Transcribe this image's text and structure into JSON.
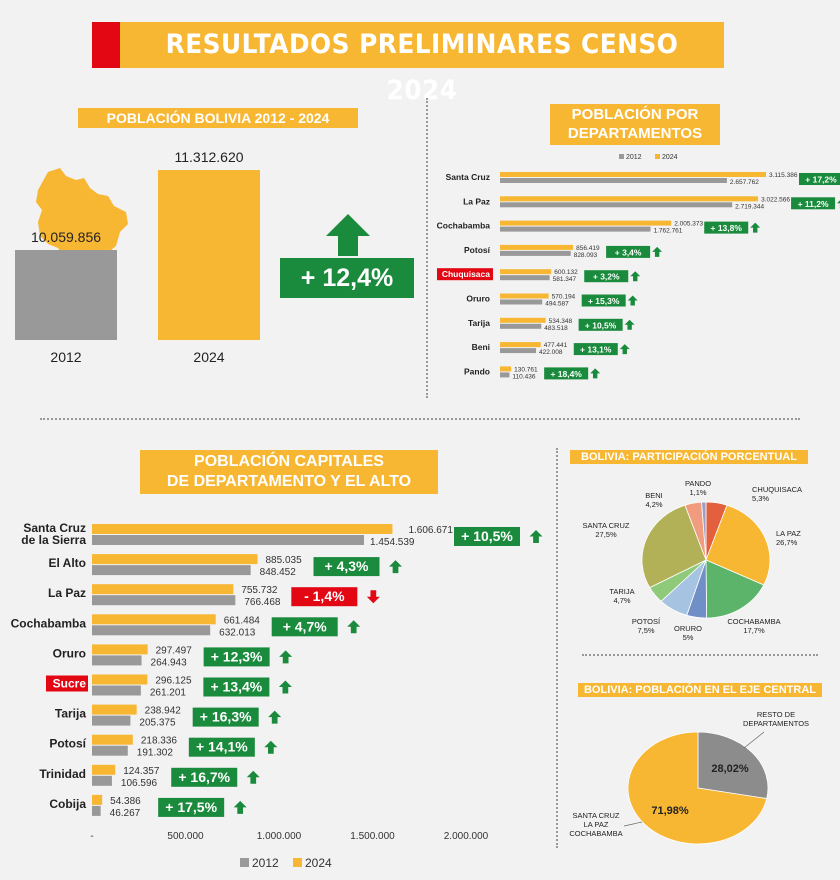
{
  "title": "RESULTADOS PRELIMINARES CENSO 2024",
  "colors": {
    "y2024": "#f7b733",
    "y2012": "#999999",
    "up": "#1a8a3c",
    "down": "#e30613",
    "highlight": "#e30613"
  },
  "icons": {
    "up": "arrow-up-icon",
    "down": "arrow-down-icon",
    "map": "bolivia-map-icon"
  },
  "chart_data": [
    {
      "type": "bar",
      "title": "POBLACIÓN BOLIVIA 2012 - 2024",
      "categories": [
        "2012",
        "2024"
      ],
      "values": [
        10059856,
        11312620
      ],
      "value_labels": [
        "10.059.856",
        "11.312.620"
      ],
      "change_label": "+ 12,4%"
    },
    {
      "type": "bar",
      "title": "POBLACIÓN POR DEPARTAMENTOS",
      "legend": [
        "2012",
        "2024"
      ],
      "categories": [
        "Santa Cruz",
        "La Paz",
        "Cochabamba",
        "Potosí",
        "Chuquisaca",
        "Oruro",
        "Tarija",
        "Beni",
        "Pando"
      ],
      "series": [
        {
          "name": "2024",
          "values": [
            3115386,
            3022566,
            2005373,
            856419,
            600132,
            570194,
            534348,
            477441,
            130761
          ],
          "labels": [
            "3.115.386",
            "3.022.566",
            "2.005.373",
            "856.419",
            "600.132",
            "570.194",
            "534.348",
            "477.441",
            "130.761"
          ]
        },
        {
          "name": "2012",
          "values": [
            2657762,
            2719344,
            1762761,
            828093,
            581347,
            494587,
            483518,
            422008,
            110436
          ],
          "labels": [
            "2.657.762",
            "2.719.344",
            "1.762.761",
            "828.093",
            "581.347",
            "494.587",
            "483.518",
            "422.008",
            "110.436"
          ]
        }
      ],
      "changes": [
        "+ 17,2%",
        "+ 11,2%",
        "+ 13,8%",
        "+ 3,4%",
        "+ 3,2%",
        "+ 15,3%",
        "+ 10,5%",
        "+ 13,1%",
        "+ 18,4%"
      ],
      "highlight": "Chuquisaca"
    },
    {
      "type": "bar",
      "title": "POBLACIÓN CAPITALES DE DEPARTAMENTO Y EL ALTO",
      "title_lines": [
        "POBLACIÓN CAPITALES",
        "DE DEPARTAMENTO Y EL ALTO"
      ],
      "legend": [
        "2012",
        "2024"
      ],
      "categories": [
        "Santa Cruz de la Sierra",
        "El Alto",
        "La Paz",
        "Cochabamba",
        "Oruro",
        "Sucre",
        "Tarija",
        "Potosí",
        "Trinidad",
        "Cobija"
      ],
      "category_lines": [
        [
          "Santa Cruz",
          "de la Sierra"
        ],
        [
          "El Alto"
        ],
        [
          "La Paz"
        ],
        [
          "Cochabamba"
        ],
        [
          "Oruro"
        ],
        [
          "Sucre"
        ],
        [
          "Tarija"
        ],
        [
          "Potosí"
        ],
        [
          "Trinidad"
        ],
        [
          "Cobija"
        ]
      ],
      "series": [
        {
          "name": "2024",
          "values": [
            1606671,
            885035,
            755732,
            661484,
            297497,
            296125,
            238942,
            218336,
            124357,
            54386
          ],
          "labels": [
            "1.606.671",
            "885.035",
            "755.732",
            "661.484",
            "297.497",
            "296.125",
            "238.942",
            "218.336",
            "124.357",
            "54.386"
          ]
        },
        {
          "name": "2012",
          "values": [
            1454539,
            848452,
            766468,
            632013,
            264943,
            261201,
            205375,
            191302,
            106596,
            46267
          ],
          "labels": [
            "1.454.539",
            "848.452",
            "766.468",
            "632.013",
            "264.943",
            "261.201",
            "205.375",
            "191.302",
            "106.596",
            "46.267"
          ]
        }
      ],
      "changes": [
        "+ 10,5%",
        "+ 4,3%",
        "- 1,4%",
        "+ 4,7%",
        "+ 12,3%",
        "+ 13,4%",
        "+ 16,3%",
        "+ 14,1%",
        "+ 16,7%",
        "+ 17,5%"
      ],
      "xlim": [
        0,
        2000000
      ],
      "x_ticks": [
        "-",
        "500.000",
        "1.000.000",
        "1.500.000",
        "2.000.000"
      ],
      "highlight": "Sucre"
    },
    {
      "type": "pie",
      "title": "BOLIVIA: PARTICIPACIÓN PORCENTUAL",
      "slices": [
        {
          "name": "CHUQUISACA",
          "value": 5.3,
          "label": "5,3%",
          "color": "#e2603e"
        },
        {
          "name": "LA PAZ",
          "value": 26.7,
          "label": "26,7%",
          "color": "#f7b733"
        },
        {
          "name": "COCHABAMBA",
          "value": 17.7,
          "label": "17,7%",
          "color": "#5bb46a"
        },
        {
          "name": "ORURO",
          "value": 5.0,
          "label": "5%",
          "color": "#6f8fc6"
        },
        {
          "name": "POTOSÍ",
          "value": 7.5,
          "label": "7,5%",
          "color": "#a7c3e2"
        },
        {
          "name": "TARIJA",
          "value": 4.7,
          "label": "4,7%",
          "color": "#8fc97a"
        },
        {
          "name": "SANTA CRUZ",
          "value": 27.5,
          "label": "27,5%",
          "color": "#b3b158"
        },
        {
          "name": "BENI",
          "value": 4.2,
          "label": "4,2%",
          "color": "#f19c7e"
        },
        {
          "name": "PANDO",
          "value": 1.1,
          "label": "1,1%",
          "color": "#9b9ec8"
        }
      ]
    },
    {
      "type": "pie",
      "title": "BOLIVIA: POBLACIÓN EN EL EJE CENTRAL",
      "slices": [
        {
          "name": "RESTO DE DEPARTAMENTOS",
          "name_lines": [
            "RESTO DE",
            "DEPARTAMENTOS"
          ],
          "value": 28.02,
          "label": "28,02%",
          "color": "#8c8c8c"
        },
        {
          "name": "SANTA CRUZ LA PAZ COCHABAMBA",
          "name_lines": [
            "SANTA CRUZ",
            "LA PAZ",
            "COCHABAMBA"
          ],
          "value": 71.98,
          "label": "71,98%",
          "color": "#f7b733"
        }
      ]
    }
  ]
}
